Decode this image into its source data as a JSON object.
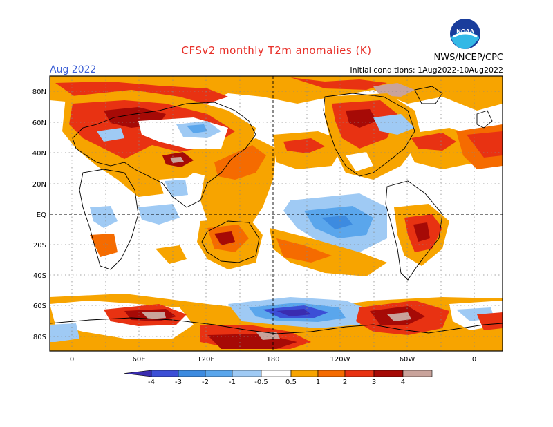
{
  "header": {
    "title": "CFSv2 monthly T2m anomalies (K)",
    "month": "Aug 2022",
    "agency": "NWS/NCEP/CPC",
    "logo_text": "NOAA",
    "initial_conditions": "Initial conditions: 1Aug2022-10Aug2022"
  },
  "map": {
    "lat_labels": [
      "80N",
      "60N",
      "40N",
      "20N",
      "EQ",
      "20S",
      "40S",
      "60S",
      "80S"
    ],
    "lon_labels": [
      "0",
      "60E",
      "120E",
      "180",
      "120W",
      "60W",
      "0"
    ]
  },
  "colorbar": {
    "labels": [
      "-4",
      "-3",
      "-2",
      "-1",
      "-0.5",
      "0.5",
      "1",
      "2",
      "3",
      "4"
    ],
    "colors": [
      "#3a2cb0",
      "#3c4fd6",
      "#3d8be0",
      "#5aa6ec",
      "#9fcaf4",
      "#ffffff",
      "#f7a400",
      "#f56b00",
      "#e83212",
      "#a60a06",
      "#c9a39b",
      "#8a5a4a"
    ]
  }
}
